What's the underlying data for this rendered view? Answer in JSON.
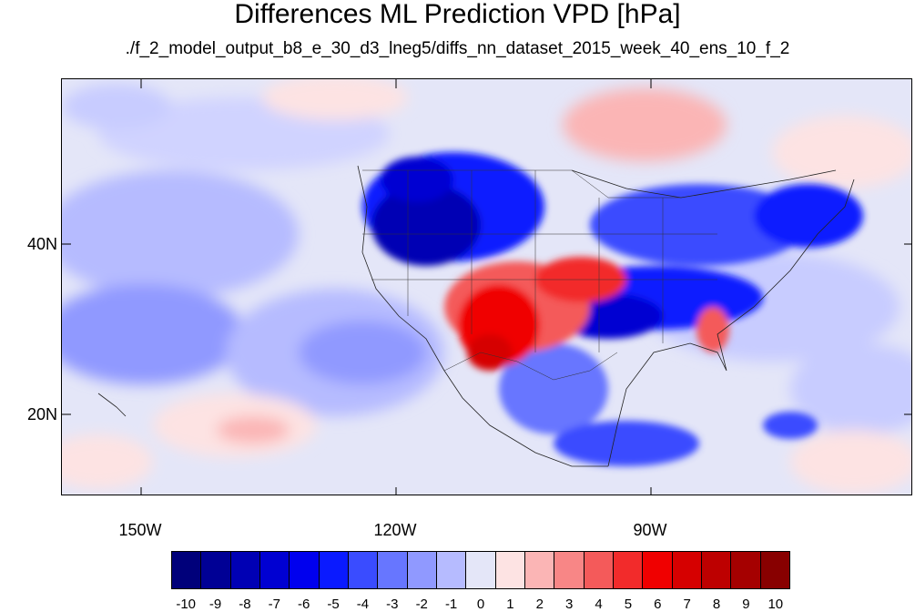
{
  "title": "Differences ML Prediction VPD [hPa]",
  "subtitle": "./f_2_model_output_b8_e_30_d3_lneg5/diffs_nn_dataset_2015_week_40_ens_10_f_2",
  "axes": {
    "lat_labels": [
      "40N",
      "20N"
    ],
    "lon_labels": [
      "150W",
      "120W",
      "90W"
    ]
  },
  "colorbar": {
    "labels": [
      "-10",
      "-9",
      "-8",
      "-7",
      "-6",
      "-5",
      "-4",
      "-3",
      "-2",
      "-1",
      "0",
      "1",
      "2",
      "3",
      "4",
      "5",
      "6",
      "7",
      "8",
      "9",
      "10"
    ],
    "colors": [
      "#00007a",
      "#000095",
      "#0000b4",
      "#0000d2",
      "#0000ee",
      "#0a1aff",
      "#3a4cff",
      "#6776ff",
      "#9099ff",
      "#b6bbff",
      "#e4e6f8",
      "#fde3e3",
      "#fbb5b5",
      "#f88686",
      "#f45a5a",
      "#f22b2b",
      "#f00000",
      "#d60000",
      "#bd0000",
      "#a50000",
      "#880000"
    ]
  }
}
